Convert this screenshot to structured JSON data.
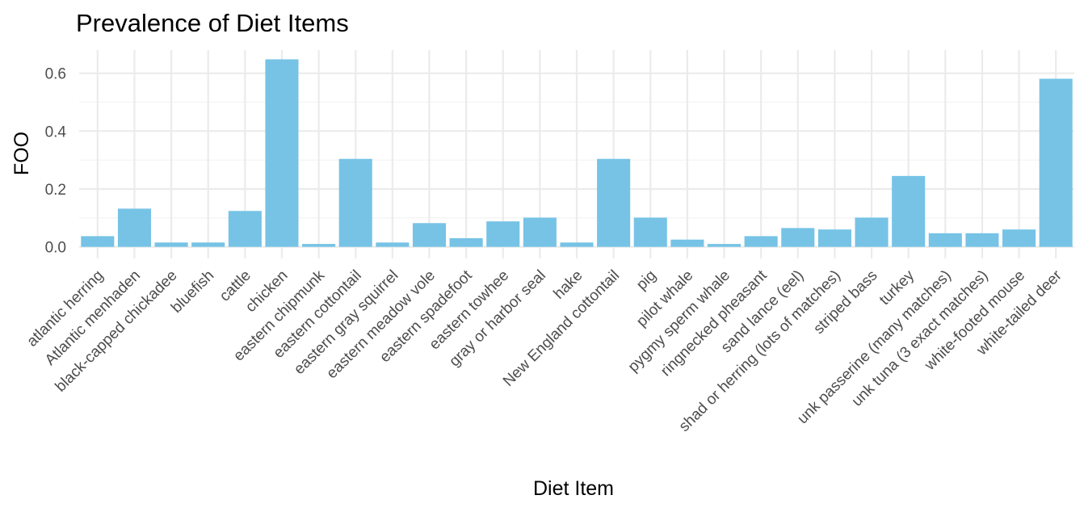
{
  "chart_data": {
    "type": "bar",
    "title": "Prevalence of Diet Items",
    "xlabel": "Diet Item",
    "ylabel": "FOO",
    "ylim": [
      -0.04,
      0.68
    ],
    "yticks": [
      0.0,
      0.2,
      0.4,
      0.6
    ],
    "ytick_labels": [
      "0.0",
      "0.2",
      "0.4",
      "0.6"
    ],
    "grid": true,
    "bar_color": "#76C3E6",
    "categories": [
      "atlantic herring",
      "Atlantic menhaden",
      "black-capped chickadee",
      "bluefish",
      "cattle",
      "chicken",
      "eastern chipmunk",
      "eastern cottontail",
      "eastern gray squirrel",
      "eastern meadow vole",
      "eastern spadefoot",
      "eastern towhee",
      "gray or harbor seal",
      "hake",
      "New England cottontail",
      "pig",
      "pilot whale",
      "pygmy sperm whale",
      "ringnecked pheasant",
      "sand lance (eel)",
      "shad or herring (lots of matches)",
      "striped bass",
      "turkey",
      "unk passerine (many matches)",
      "unk tuna (3 exact matches)",
      "white-footed mouse",
      "white-tailed deer"
    ],
    "values": [
      0.037,
      0.132,
      0.015,
      0.015,
      0.124,
      0.648,
      0.01,
      0.304,
      0.015,
      0.082,
      0.03,
      0.088,
      0.101,
      0.015,
      0.304,
      0.101,
      0.025,
      0.01,
      0.037,
      0.065,
      0.06,
      0.101,
      0.245,
      0.047,
      0.047,
      0.06,
      0.581
    ]
  }
}
